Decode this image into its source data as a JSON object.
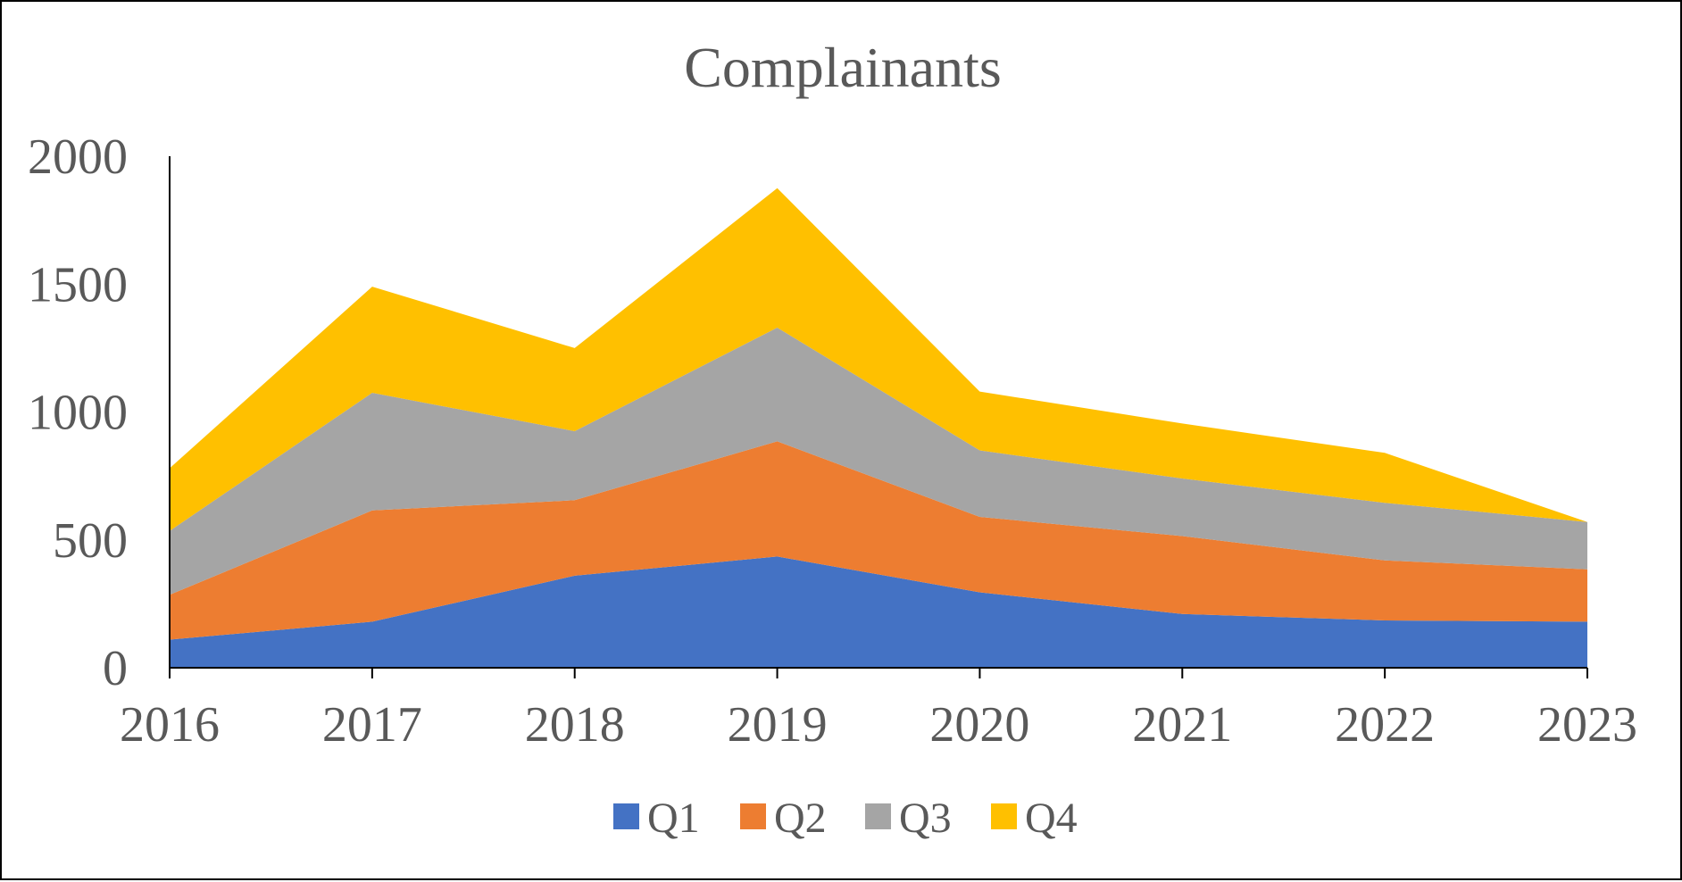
{
  "chart_data": {
    "type": "area",
    "stacked": true,
    "title": "Complainants",
    "xlabel": "",
    "ylabel": "",
    "categories": [
      "2016",
      "2017",
      "2018",
      "2019",
      "2020",
      "2021",
      "2022",
      "2023"
    ],
    "ylim": [
      0,
      2000
    ],
    "yticks": [
      "0",
      "500",
      "1000",
      "1500",
      "2000"
    ],
    "grid": false,
    "legend_position": "bottom",
    "series": [
      {
        "name": "Q1",
        "color": "#4472C4",
        "values": [
          110,
          180,
          360,
          435,
          295,
          210,
          185,
          180
        ]
      },
      {
        "name": "Q2",
        "color": "#ED7D31",
        "values": [
          175,
          435,
          295,
          450,
          295,
          305,
          235,
          205
        ]
      },
      {
        "name": "Q3",
        "color": "#A5A5A5",
        "values": [
          250,
          460,
          270,
          445,
          260,
          225,
          225,
          185
        ]
      },
      {
        "name": "Q4",
        "color": "#FFC000",
        "values": [
          245,
          415,
          325,
          545,
          230,
          215,
          195,
          0
        ]
      }
    ]
  }
}
